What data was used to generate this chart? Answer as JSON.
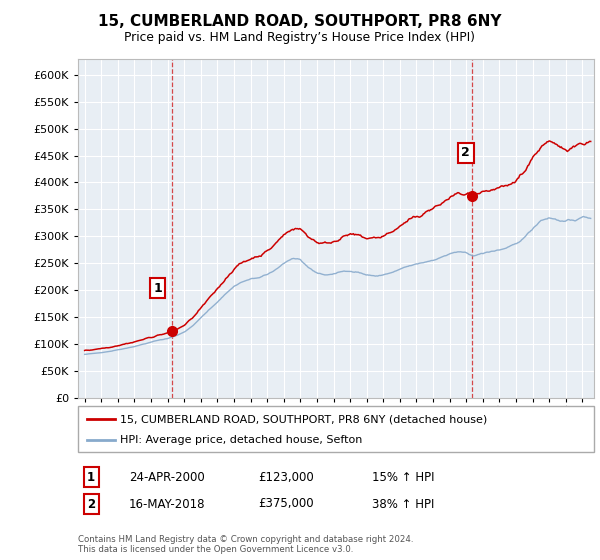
{
  "title": "15, CUMBERLAND ROAD, SOUTHPORT, PR8 6NY",
  "subtitle": "Price paid vs. HM Land Registry’s House Price Index (HPI)",
  "yticks": [
    0,
    50000,
    100000,
    150000,
    200000,
    250000,
    300000,
    350000,
    400000,
    450000,
    500000,
    550000,
    600000
  ],
  "ylim": [
    0,
    630000
  ],
  "xlim_left": 1994.6,
  "xlim_right": 2025.7,
  "xtick_start": 1995,
  "xtick_end": 2025,
  "sale1_year": 2000.29,
  "sale1_price": 123000,
  "sale2_year": 2018.37,
  "sale2_price": 375000,
  "legend_line1": "15, CUMBERLAND ROAD, SOUTHPORT, PR8 6NY (detached house)",
  "legend_line2": "HPI: Average price, detached house, Sefton",
  "table_rows": [
    [
      "1",
      "24-APR-2000",
      "£123,000",
      "15% ↑ HPI"
    ],
    [
      "2",
      "16-MAY-2018",
      "£375,000",
      "38% ↑ HPI"
    ]
  ],
  "footer": "Contains HM Land Registry data © Crown copyright and database right 2024.\nThis data is licensed under the Open Government Licence v3.0.",
  "color_red": "#cc0000",
  "color_blue": "#88aacc",
  "color_grid": "#cccccc",
  "color_bg": "#ffffff",
  "color_plot_bg": "#e8eef4",
  "hpi_years": [
    1995.0,
    1995.5,
    1996.0,
    1996.5,
    1997.0,
    1997.5,
    1998.0,
    1998.5,
    1999.0,
    1999.5,
    2000.0,
    2000.5,
    2001.0,
    2001.5,
    2002.0,
    2002.5,
    2003.0,
    2003.5,
    2004.0,
    2004.5,
    2005.0,
    2005.5,
    2006.0,
    2006.5,
    2007.0,
    2007.5,
    2008.0,
    2008.5,
    2009.0,
    2009.5,
    2010.0,
    2010.5,
    2011.0,
    2011.5,
    2012.0,
    2012.5,
    2013.0,
    2013.5,
    2014.0,
    2014.5,
    2015.0,
    2015.5,
    2016.0,
    2016.5,
    2017.0,
    2017.5,
    2018.0,
    2018.5,
    2019.0,
    2019.5,
    2020.0,
    2020.5,
    2021.0,
    2021.5,
    2022.0,
    2022.5,
    2023.0,
    2023.5,
    2024.0,
    2024.5,
    2025.0
  ],
  "hpi_vals": [
    80000,
    82000,
    84000,
    86000,
    89000,
    92000,
    95000,
    99000,
    103000,
    107000,
    110000,
    115000,
    122000,
    133000,
    148000,
    163000,
    178000,
    193000,
    207000,
    215000,
    220000,
    223000,
    228000,
    238000,
    250000,
    258000,
    255000,
    242000,
    232000,
    228000,
    230000,
    234000,
    236000,
    233000,
    228000,
    226000,
    228000,
    232000,
    238000,
    244000,
    248000,
    252000,
    256000,
    261000,
    267000,
    271000,
    268000,
    264000,
    268000,
    272000,
    275000,
    278000,
    285000,
    298000,
    315000,
    330000,
    335000,
    330000,
    328000,
    330000,
    335000
  ]
}
